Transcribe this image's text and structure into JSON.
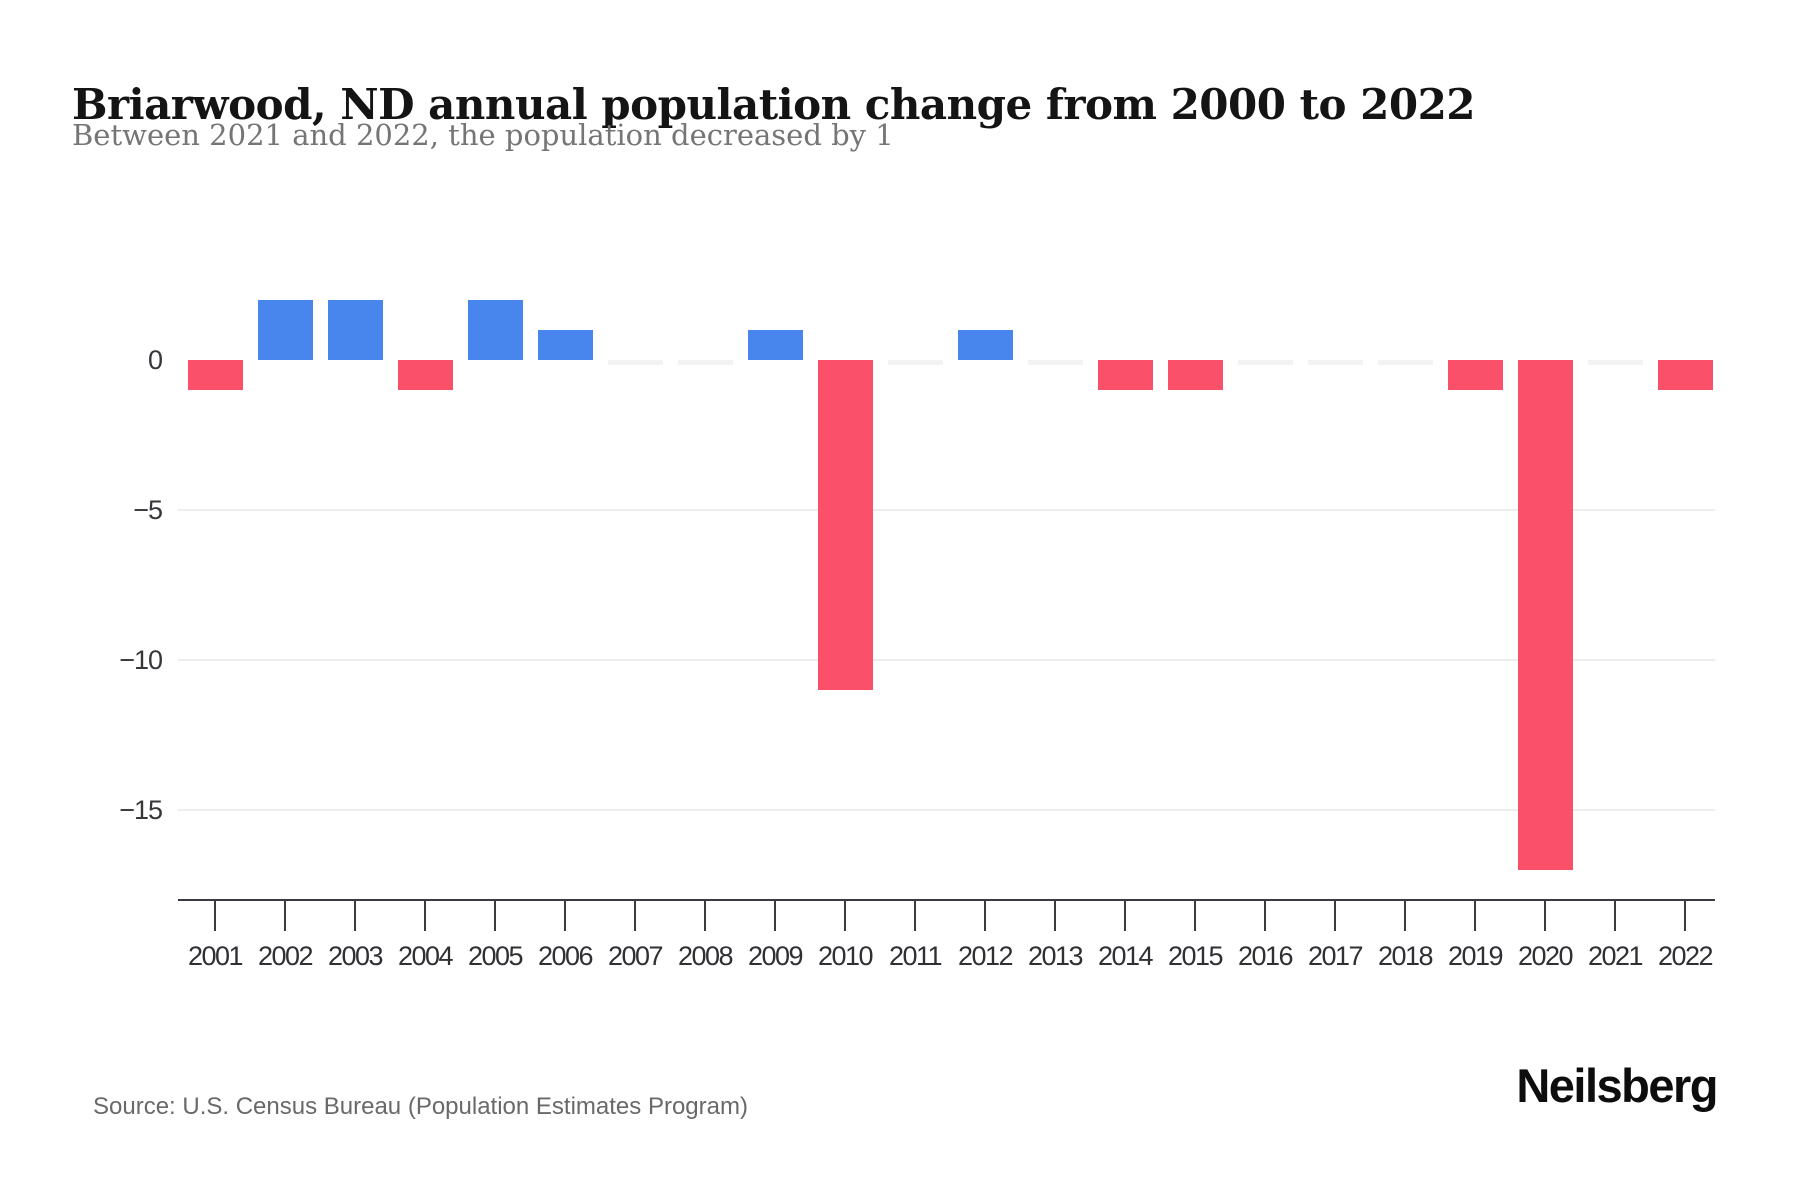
{
  "header": {
    "title": "Briarwood, ND annual population change from 2000 to 2022",
    "subtitle": "Between 2021 and 2022, the population decreased by 1"
  },
  "footer": {
    "source": "Source: U.S. Census Bureau (Population Estimates Program)",
    "brand": "Neilsberg"
  },
  "chart_data": {
    "type": "bar",
    "title": "Briarwood, ND annual population change from 2000 to 2022",
    "subtitle": "Between 2021 and 2022, the population decreased by 1",
    "categories": [
      "2001",
      "2002",
      "2003",
      "2004",
      "2005",
      "2006",
      "2007",
      "2008",
      "2009",
      "2010",
      "2011",
      "2012",
      "2013",
      "2014",
      "2015",
      "2016",
      "2017",
      "2018",
      "2019",
      "2020",
      "2021",
      "2022"
    ],
    "values": [
      -1,
      2,
      2,
      -1,
      2,
      1,
      0,
      0,
      1,
      -11,
      0,
      1,
      0,
      -1,
      -1,
      0,
      0,
      0,
      -1,
      -17,
      0,
      -1
    ],
    "xlabel": "",
    "ylabel": "",
    "yticks": [
      0,
      -5,
      -10,
      -15
    ],
    "ylim": [
      -18,
      4.6
    ],
    "grid": true,
    "legend_position": "none",
    "colors": {
      "positive": "#4886ee",
      "negative": "#fa5069",
      "zero_marker": "#f2f2f2",
      "gridline": "#ededed",
      "axis": "#3a3a40"
    }
  }
}
